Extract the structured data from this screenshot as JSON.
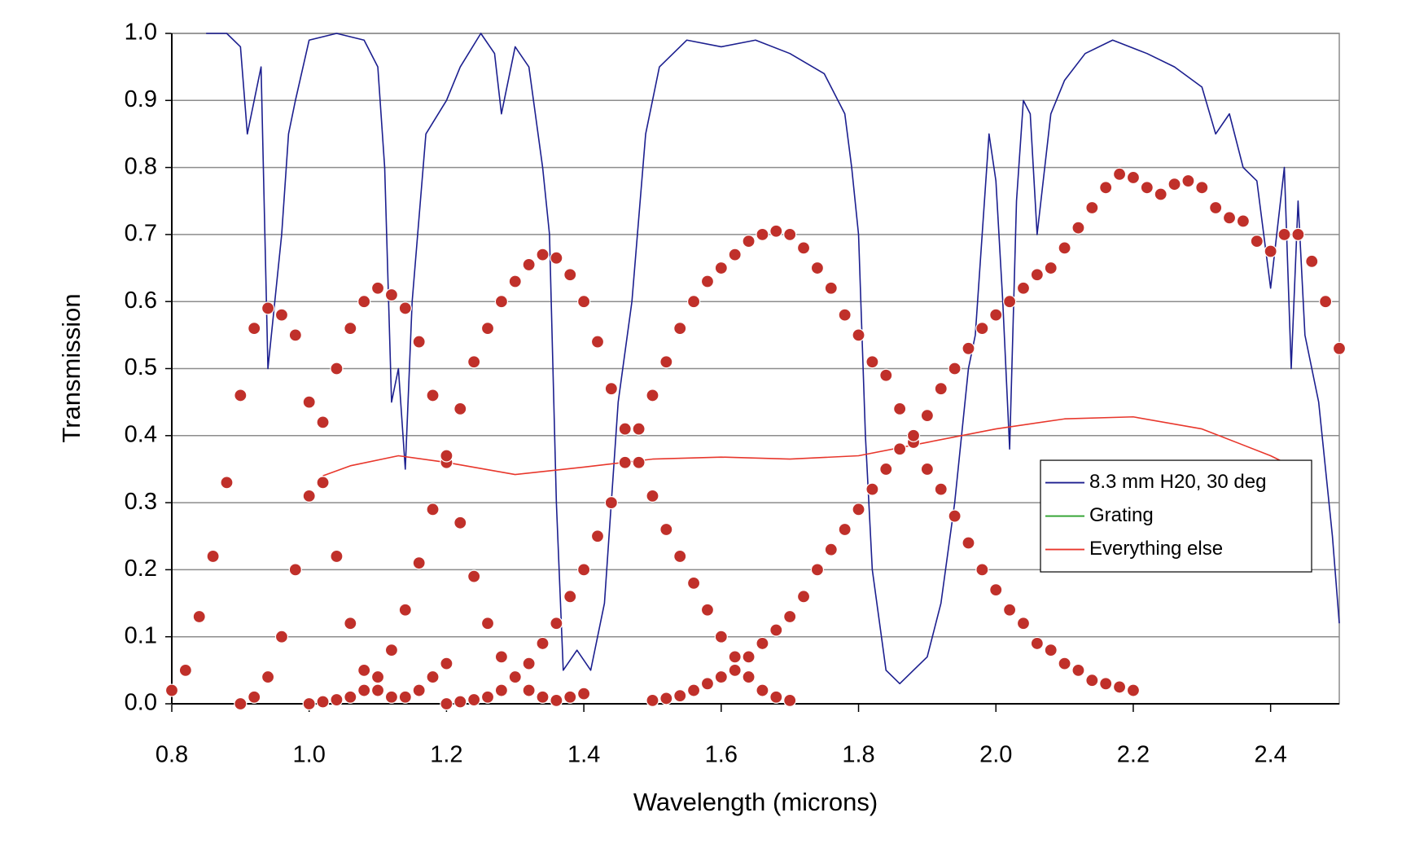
{
  "chart_data": {
    "type": "line",
    "x_label": "Wavelength (microns)",
    "y_label": "Transmission",
    "xlim": [
      0.8,
      2.5
    ],
    "ylim": [
      0,
      1
    ],
    "xticks": [
      0.8,
      {
        "value": 1,
        "label": "1.0"
      },
      1.2,
      1.4,
      1.6,
      1.8,
      {
        "value": 2,
        "label": "2.0"
      },
      2.2,
      2.4
    ],
    "yticks": [
      {
        "value": 0,
        "label": "0.0"
      },
      0.1,
      0.2,
      0.3,
      0.4,
      0.5,
      0.6,
      0.7,
      0.8,
      0.9,
      {
        "value": 1,
        "label": "1.0"
      }
    ],
    "grid": true,
    "legend": "right",
    "series": [
      {
        "name": "8.3 mm H20, 30 deg",
        "color": "#1c1f8f",
        "style": "line",
        "x": [
          0.85,
          0.88,
          0.9,
          0.91,
          0.92,
          0.93,
          0.94,
          0.95,
          0.96,
          0.97,
          0.98,
          1.0,
          1.04,
          1.08,
          1.1,
          1.11,
          1.12,
          1.13,
          1.14,
          1.15,
          1.17,
          1.2,
          1.22,
          1.25,
          1.27,
          1.28,
          1.3,
          1.32,
          1.34,
          1.35,
          1.36,
          1.37,
          1.39,
          1.41,
          1.43,
          1.45,
          1.47,
          1.49,
          1.51,
          1.55,
          1.6,
          1.65,
          1.7,
          1.75,
          1.78,
          1.79,
          1.8,
          1.81,
          1.82,
          1.84,
          1.86,
          1.88,
          1.9,
          1.92,
          1.94,
          1.96,
          1.97,
          1.98,
          1.99,
          2.0,
          2.01,
          2.02,
          2.03,
          2.04,
          2.05,
          2.06,
          2.08,
          2.1,
          2.13,
          2.17,
          2.22,
          2.26,
          2.3,
          2.32,
          2.34,
          2.36,
          2.38,
          2.4,
          2.42,
          2.43,
          2.44,
          2.45,
          2.47,
          2.49,
          2.5
        ],
        "values": [
          1.0,
          1.0,
          0.98,
          0.85,
          0.9,
          0.95,
          0.5,
          0.6,
          0.7,
          0.85,
          0.9,
          0.99,
          1.0,
          0.99,
          0.95,
          0.8,
          0.45,
          0.5,
          0.35,
          0.6,
          0.85,
          0.9,
          0.95,
          1.0,
          0.97,
          0.88,
          0.98,
          0.95,
          0.8,
          0.7,
          0.3,
          0.05,
          0.08,
          0.05,
          0.15,
          0.45,
          0.6,
          0.85,
          0.95,
          0.99,
          0.98,
          0.99,
          0.97,
          0.94,
          0.88,
          0.8,
          0.7,
          0.4,
          0.2,
          0.05,
          0.03,
          0.05,
          0.07,
          0.15,
          0.3,
          0.5,
          0.55,
          0.7,
          0.85,
          0.78,
          0.6,
          0.38,
          0.75,
          0.9,
          0.88,
          0.7,
          0.88,
          0.93,
          0.97,
          0.99,
          0.97,
          0.95,
          0.92,
          0.85,
          0.88,
          0.8,
          0.78,
          0.62,
          0.8,
          0.5,
          0.75,
          0.55,
          0.45,
          0.25,
          0.12
        ]
      },
      {
        "name": "Grating",
        "color": "#2ca02c",
        "style": "line",
        "x": [],
        "values": []
      },
      {
        "name": "Everything else",
        "color": "#e8372c",
        "style": "line",
        "x": [
          1.02,
          1.06,
          1.13,
          1.2,
          1.3,
          1.4,
          1.5,
          1.6,
          1.7,
          1.8,
          1.9,
          2.0,
          2.1,
          2.2,
          2.3,
          2.4,
          2.46
        ],
        "values": [
          0.34,
          0.355,
          0.37,
          0.36,
          0.342,
          0.353,
          0.365,
          0.368,
          0.365,
          0.37,
          0.39,
          0.41,
          0.425,
          0.428,
          0.41,
          0.37,
          0.34
        ]
      },
      {
        "color": "#c0302a",
        "style": "dots",
        "x": [
          0.8,
          0.82,
          0.84,
          0.86,
          0.88,
          0.9,
          0.92,
          0.94,
          0.96,
          0.98,
          1.0,
          1.02,
          1.04,
          1.06,
          1.08,
          1.1,
          1.12,
          1.14,
          1.16,
          1.18,
          1.2
        ],
        "values": [
          0.02,
          0.05,
          0.13,
          0.22,
          0.33,
          0.46,
          0.56,
          0.59,
          0.58,
          0.55,
          0.45,
          0.33,
          0.22,
          0.12,
          0.05,
          0.02,
          0.01,
          0.01,
          0.02,
          0.04,
          0.06
        ]
      },
      {
        "color": "#c0302a",
        "style": "dots",
        "x": [
          0.9,
          0.92,
          0.94,
          0.96,
          0.98,
          1.0,
          1.02,
          1.04,
          1.06,
          1.08,
          1.1,
          1.12,
          1.14,
          1.16,
          1.18,
          1.2,
          1.22,
          1.24,
          1.26,
          1.28,
          1.3,
          1.32,
          1.34,
          1.36,
          1.38,
          1.4
        ],
        "values": [
          0.0,
          0.01,
          0.04,
          0.1,
          0.2,
          0.31,
          0.42,
          0.5,
          0.56,
          0.6,
          0.62,
          0.61,
          0.59,
          0.54,
          0.46,
          0.36,
          0.27,
          0.19,
          0.12,
          0.07,
          0.04,
          0.02,
          0.01,
          0.005,
          0.01,
          0.015
        ]
      },
      {
        "color": "#c0302a",
        "style": "dots",
        "x": [
          1.0,
          1.02,
          1.04,
          1.06,
          1.08,
          1.1,
          1.12,
          1.14,
          1.16,
          1.18,
          1.2,
          1.22,
          1.24,
          1.26,
          1.28,
          1.3,
          1.32,
          1.34,
          1.36,
          1.38,
          1.4,
          1.42,
          1.44,
          1.46,
          1.48,
          1.5,
          1.52,
          1.54,
          1.56,
          1.58,
          1.6,
          1.62,
          1.64,
          1.66,
          1.68,
          1.7
        ],
        "values": [
          0.0,
          0.003,
          0.006,
          0.01,
          0.02,
          0.04,
          0.08,
          0.14,
          0.21,
          0.29,
          0.37,
          0.44,
          0.51,
          0.56,
          0.6,
          0.63,
          0.655,
          0.67,
          0.665,
          0.64,
          0.6,
          0.54,
          0.47,
          0.41,
          0.36,
          0.31,
          0.26,
          0.22,
          0.18,
          0.14,
          0.1,
          0.07,
          0.04,
          0.02,
          0.01,
          0.005
        ]
      },
      {
        "color": "#c0302a",
        "style": "dots",
        "x": [
          1.2,
          1.22,
          1.24,
          1.26,
          1.28,
          1.3,
          1.32,
          1.34,
          1.36,
          1.38,
          1.4,
          1.42,
          1.44,
          1.46,
          1.48,
          1.5,
          1.52,
          1.54,
          1.56,
          1.58,
          1.6,
          1.62,
          1.64,
          1.66,
          1.68,
          1.7,
          1.72,
          1.74,
          1.76,
          1.78,
          1.8,
          1.82,
          1.84,
          1.86,
          1.88,
          1.9,
          1.92,
          1.94,
          1.96,
          1.98,
          2.0,
          2.02,
          2.04,
          2.06,
          2.08,
          2.1,
          2.12,
          2.14,
          2.16,
          2.18,
          2.2
        ],
        "values": [
          0.0,
          0.003,
          0.006,
          0.01,
          0.02,
          0.04,
          0.06,
          0.09,
          0.12,
          0.16,
          0.2,
          0.25,
          0.3,
          0.36,
          0.41,
          0.46,
          0.51,
          0.56,
          0.6,
          0.63,
          0.65,
          0.67,
          0.69,
          0.7,
          0.705,
          0.7,
          0.68,
          0.65,
          0.62,
          0.58,
          0.55,
          0.51,
          0.49,
          0.44,
          0.39,
          0.35,
          0.32,
          0.28,
          0.24,
          0.2,
          0.17,
          0.14,
          0.12,
          0.09,
          0.08,
          0.06,
          0.05,
          0.035,
          0.03,
          0.025,
          0.02
        ]
      },
      {
        "color": "#c0302a",
        "style": "dots",
        "x": [
          1.5,
          1.52,
          1.54,
          1.56,
          1.58,
          1.6,
          1.62,
          1.64,
          1.66,
          1.68,
          1.7,
          1.72,
          1.74,
          1.76,
          1.78,
          1.8,
          1.82,
          1.84,
          1.86,
          1.88,
          1.9,
          1.92,
          1.94,
          1.96,
          1.98,
          2.0,
          2.02,
          2.04,
          2.06,
          2.08,
          2.1,
          2.12,
          2.14,
          2.16,
          2.18,
          2.2,
          2.22,
          2.24,
          2.26,
          2.28,
          2.3,
          2.32,
          2.34,
          2.36,
          2.38,
          2.4,
          2.42,
          2.44,
          2.46,
          2.48,
          2.5
        ],
        "values": [
          0.005,
          0.008,
          0.012,
          0.02,
          0.03,
          0.04,
          0.05,
          0.07,
          0.09,
          0.11,
          0.13,
          0.16,
          0.2,
          0.23,
          0.26,
          0.29,
          0.32,
          0.35,
          0.38,
          0.4,
          0.43,
          0.47,
          0.5,
          0.53,
          0.56,
          0.58,
          0.6,
          0.62,
          0.64,
          0.65,
          0.68,
          0.71,
          0.74,
          0.77,
          0.79,
          0.785,
          0.77,
          0.76,
          0.775,
          0.78,
          0.77,
          0.74,
          0.725,
          0.72,
          0.69,
          0.675,
          0.7,
          0.7,
          0.66,
          0.6,
          0.53
        ]
      }
    ]
  }
}
